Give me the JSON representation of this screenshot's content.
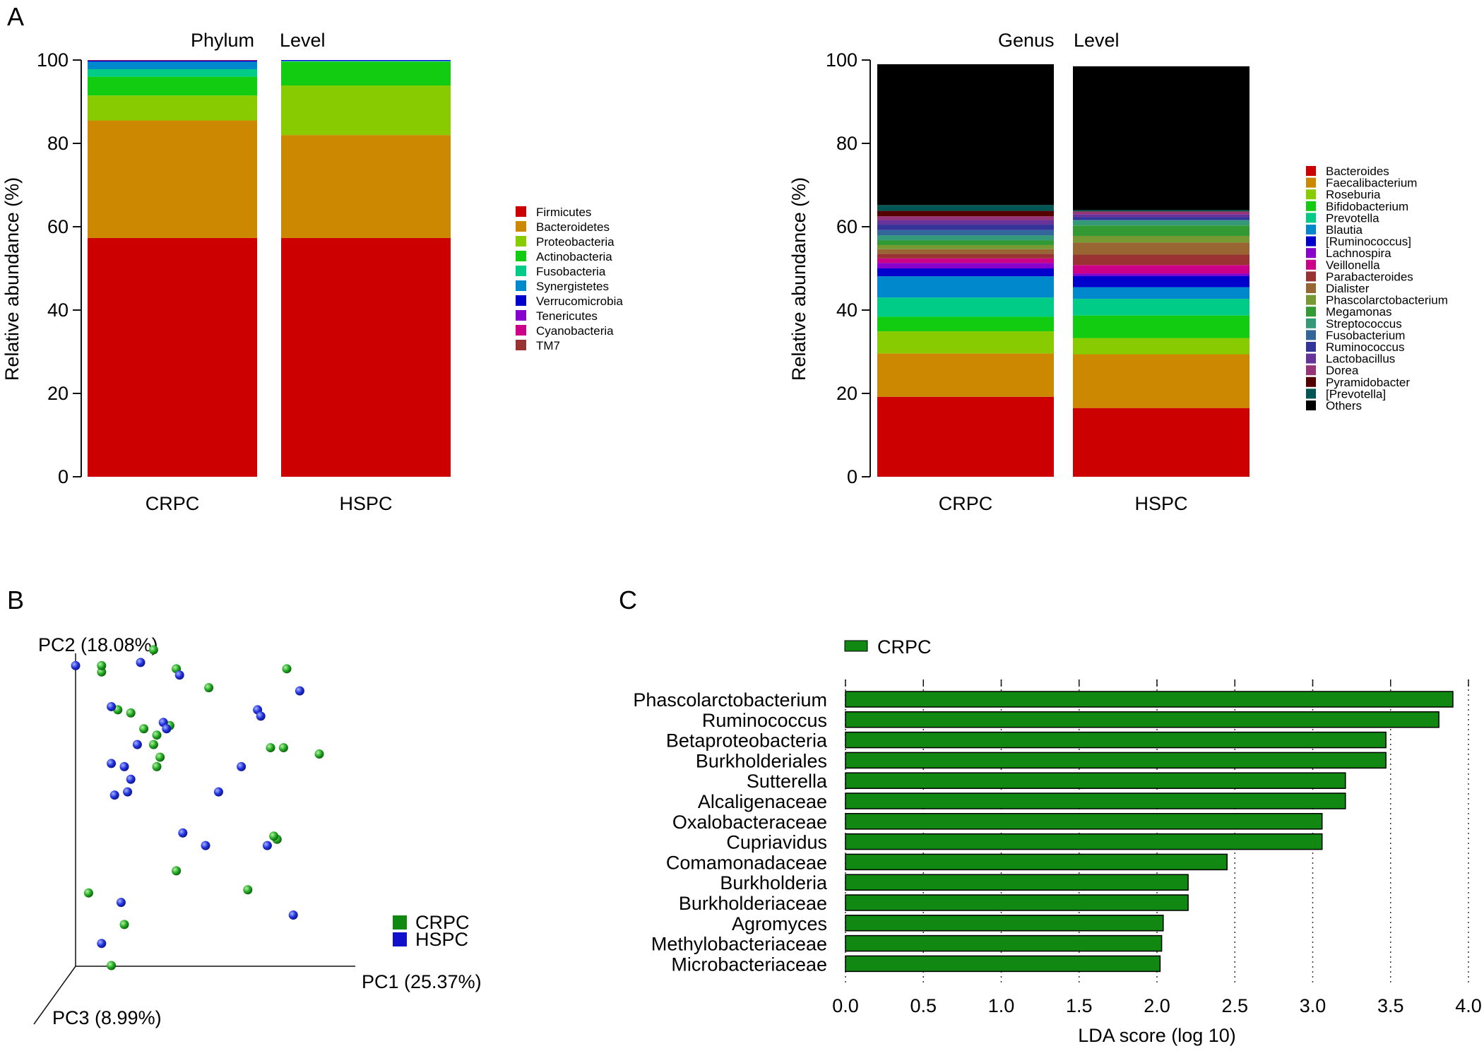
{
  "panels": {
    "a": "A",
    "b": "B",
    "c": "C"
  },
  "chart_data": [
    {
      "id": "phylum",
      "type": "bar",
      "stacked": true,
      "title_parts": [
        "Phylum",
        "Level"
      ],
      "ylabel": "Relative abundance (%)",
      "ylim": [
        0,
        100
      ],
      "yticks": [
        0,
        20,
        40,
        60,
        80,
        100
      ],
      "categories": [
        "CRPC",
        "HSPC"
      ],
      "legend_position": "right",
      "series": [
        {
          "name": "Firmicutes",
          "color": "#cc0000",
          "values": [
            57.3,
            57.3
          ]
        },
        {
          "name": "Bacteroidetes",
          "color": "#cc8800",
          "values": [
            28.2,
            24.7
          ]
        },
        {
          "name": "Proteobacteria",
          "color": "#88cc00",
          "values": [
            6.0,
            11.9
          ]
        },
        {
          "name": "Actinobacteria",
          "color": "#11cc11",
          "values": [
            4.5,
            5.7
          ]
        },
        {
          "name": "Fusobacteria",
          "color": "#00cc88",
          "values": [
            1.8,
            0.1
          ]
        },
        {
          "name": "Synergistetes",
          "color": "#0088cc",
          "values": [
            1.8,
            0.1
          ]
        },
        {
          "name": "Verrucomicrobia",
          "color": "#0000cc",
          "values": [
            0.3,
            0.2
          ]
        },
        {
          "name": "Tenericutes",
          "color": "#8800cc",
          "values": [
            0.05,
            0.0
          ]
        },
        {
          "name": "Cyanobacteria",
          "color": "#cc0088",
          "values": [
            0.03,
            0.0
          ]
        },
        {
          "name": "TM7",
          "color": "#993333",
          "values": [
            0.02,
            0.0
          ]
        }
      ]
    },
    {
      "id": "genus",
      "type": "bar",
      "stacked": true,
      "title_parts": [
        "Genus",
        "Level"
      ],
      "ylabel": "Relative abundance (%)",
      "ylim": [
        0,
        100
      ],
      "yticks": [
        0,
        20,
        40,
        60,
        80,
        100
      ],
      "categories": [
        "CRPC",
        "HSPC"
      ],
      "legend_position": "right",
      "series": [
        {
          "name": "Bacteroides",
          "color": "#cc0000",
          "values": [
            19.2,
            16.5
          ]
        },
        {
          "name": "Faecalibacterium",
          "color": "#cc8800",
          "values": [
            10.4,
            12.9
          ]
        },
        {
          "name": "Roseburia",
          "color": "#88cc00",
          "values": [
            5.3,
            3.9
          ]
        },
        {
          "name": "Bifidobacterium",
          "color": "#11cc11",
          "values": [
            3.5,
            5.4
          ]
        },
        {
          "name": "Prevotella",
          "color": "#00cc88",
          "values": [
            4.6,
            4.0
          ]
        },
        {
          "name": "Blautia",
          "color": "#0088cc",
          "values": [
            5.1,
            2.8
          ]
        },
        {
          "name": "[Ruminococcus]",
          "color": "#0000cc",
          "values": [
            1.9,
            2.7
          ]
        },
        {
          "name": "Lachnospira",
          "color": "#8800cc",
          "values": [
            1.3,
            0.6
          ]
        },
        {
          "name": "Veillonella",
          "color": "#cc0088",
          "values": [
            1.1,
            2.0
          ]
        },
        {
          "name": "Parabacteroides",
          "color": "#993333",
          "values": [
            1.1,
            2.5
          ]
        },
        {
          "name": "Dialister",
          "color": "#996633",
          "values": [
            1.1,
            2.9
          ]
        },
        {
          "name": "Phascolarctobacterium",
          "color": "#779933",
          "values": [
            1.0,
            1.6
          ]
        },
        {
          "name": "Megamonas",
          "color": "#339933",
          "values": [
            1.1,
            2.5
          ]
        },
        {
          "name": "Streptococcus",
          "color": "#339977",
          "values": [
            1.2,
            1.2
          ]
        },
        {
          "name": "Fusobacterium",
          "color": "#336699",
          "values": [
            1.3,
            0.2
          ]
        },
        {
          "name": "Ruminococcus",
          "color": "#333399",
          "values": [
            1.3,
            0.6
          ]
        },
        {
          "name": "Lactobacillus",
          "color": "#663399",
          "values": [
            1.1,
            0.7
          ]
        },
        {
          "name": "Dorea",
          "color": "#993377",
          "values": [
            0.9,
            0.6
          ]
        },
        {
          "name": "Pyramidobacter",
          "color": "#550000",
          "values": [
            1.3,
            0.1
          ]
        },
        {
          "name": "[Prevotella]",
          "color": "#005555",
          "values": [
            1.4,
            0.3
          ]
        },
        {
          "name": "Others",
          "color": "#000000",
          "values": [
            33.8,
            34.5
          ]
        }
      ]
    },
    {
      "id": "pcoa",
      "type": "scatter",
      "xlabel": "PC1 (25.37%)",
      "ylabel": "PC2 (18.08%)",
      "zlabel": "PC3 (8.99%)",
      "xlim": [
        0,
        100
      ],
      "ylim": [
        0,
        100
      ],
      "legend_position": "bottom-right",
      "series": [
        {
          "name": "CRPC",
          "legend_color": "#118811",
          "color": "#22aa22",
          "x": [
            24,
            8,
            8,
            31,
            41,
            65,
            13,
            17,
            24,
            25,
            21,
            25,
            26,
            29,
            60,
            64,
            62,
            62,
            61,
            31,
            53,
            4,
            15,
            11,
            75
          ],
          "y": [
            100,
            93,
            95,
            94,
            88,
            94,
            81,
            80,
            70,
            73,
            75,
            63,
            66,
            76,
            69,
            69,
            40,
            40,
            41,
            30,
            24,
            23,
            13,
            0,
            67
          ]
        },
        {
          "name": "HSPC",
          "legend_color": "#1111cc",
          "color": "#2233dd",
          "x": [
            0,
            20,
            32,
            69,
            11,
            19,
            27,
            51,
            56,
            57,
            11,
            15,
            28,
            17,
            16,
            12,
            44,
            33,
            40,
            59,
            67,
            14,
            8
          ],
          "y": [
            95,
            96,
            92,
            87,
            82,
            70,
            77,
            63,
            81,
            79,
            64,
            63,
            75,
            59,
            55,
            54,
            55,
            42,
            38,
            38,
            16,
            20,
            7
          ]
        }
      ]
    },
    {
      "id": "lda",
      "type": "bar",
      "orientation": "horizontal",
      "xlabel": "LDA score (log 10)",
      "xlim": [
        0,
        4
      ],
      "xticks": [
        "0.0",
        "0.5",
        "1.0",
        "1.5",
        "2.0",
        "2.5",
        "3.0",
        "3.5",
        "4.0"
      ],
      "legend": [
        "CRPC"
      ],
      "legend_position": "top-left",
      "color": "#118811",
      "categories": [
        "Phascolarctobacterium",
        "Ruminococcus",
        "Betaproteobacteria",
        "Burkholderiales",
        "Sutterella",
        "Alcaligenaceae",
        "Oxalobacteraceae",
        "Cupriavidus",
        "Comamonadaceae",
        "Burkholderia",
        "Burkholderiaceae",
        "Agromyces",
        "Methylobacteriaceae",
        "Microbacteriaceae"
      ],
      "values": [
        3.9,
        3.81,
        3.47,
        3.47,
        3.21,
        3.21,
        3.06,
        3.06,
        2.45,
        2.2,
        2.2,
        2.04,
        2.03,
        2.02
      ]
    }
  ]
}
